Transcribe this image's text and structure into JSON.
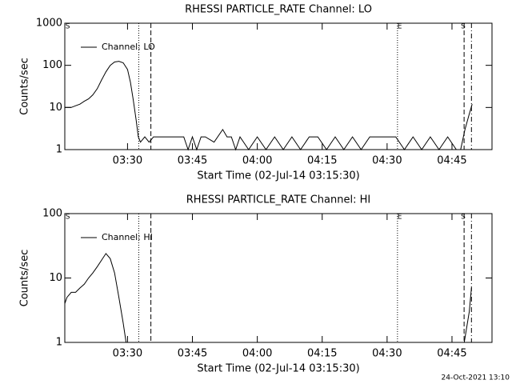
{
  "chart_data": [
    {
      "type": "line",
      "title": "RHESSI PARTICLE_RATE Channel: LO",
      "xlabel": "Start Time (02-Jul-14 03:15:30)",
      "ylabel": "Counts/sec",
      "log_y": true,
      "ylim": [
        1,
        1000
      ],
      "yticks": [
        1,
        10,
        100,
        1000
      ],
      "xlim": [
        "03:15:30",
        "04:54:15"
      ],
      "xticks": [
        "03:30",
        "03:45",
        "04:00",
        "04:15",
        "04:30",
        "04:45"
      ],
      "legend": "upper left",
      "x": [
        "03:15:30",
        "03:17",
        "03:18",
        "03:19",
        "03:20",
        "03:21",
        "03:22",
        "03:23",
        "03:24",
        "03:25",
        "03:26",
        "03:27",
        "03:28",
        "03:29",
        "03:30",
        "03:30:40",
        "03:31:20",
        "03:32",
        "03:32:30",
        "03:33",
        "03:34",
        "03:35",
        "03:36",
        "03:38",
        "03:40",
        "03:42",
        "03:43",
        "03:44",
        "03:45",
        "03:46",
        "03:47",
        "03:48",
        "03:50",
        "03:52",
        "03:53",
        "03:54",
        "03:55",
        "03:56",
        "03:58",
        "04:00",
        "04:02",
        "04:04",
        "04:06",
        "04:08",
        "04:10",
        "04:12",
        "04:14",
        "04:16",
        "04:18",
        "04:20",
        "04:22",
        "04:24",
        "04:26",
        "04:28",
        "04:30",
        "04:32",
        "04:34",
        "04:36",
        "04:38",
        "04:40",
        "04:42",
        "04:44",
        "04:46",
        "04:47",
        "04:48",
        "04:49",
        "04:49:40"
      ],
      "series": [
        {
          "name": "Channel: LO",
          "color": "#000000",
          "values": [
            10,
            10,
            11,
            12,
            14,
            16,
            20,
            28,
            45,
            70,
            100,
            120,
            125,
            115,
            80,
            40,
            15,
            5,
            2,
            1.5,
            2,
            1.5,
            2,
            2,
            2,
            2,
            2,
            1,
            2,
            1,
            2,
            2,
            1.5,
            3,
            2,
            2,
            1,
            2,
            1,
            2,
            1,
            2,
            1,
            2,
            1,
            2,
            2,
            1,
            2,
            1,
            2,
            1,
            2,
            2,
            2,
            2,
            1,
            2,
            1,
            2,
            1,
            2,
            1,
            1,
            3,
            7,
            12
          ]
        }
      ],
      "markers": [
        {
          "x": "03:32:36",
          "style": "dotted"
        },
        {
          "x": "03:35:24",
          "style": "dashed"
        },
        {
          "x": "04:32:24",
          "style": "dotted"
        },
        {
          "x": "04:47:48",
          "style": "dashed"
        },
        {
          "x": "04:49:30",
          "style": "dashdot"
        }
      ],
      "annotations": [
        {
          "x": "03:16:10",
          "text": "S"
        },
        {
          "x": "04:32:55",
          "text": "E"
        },
        {
          "x": "04:47:35",
          "text": "S"
        }
      ]
    },
    {
      "type": "line",
      "title": "RHESSI PARTICLE_RATE Channel: HI",
      "xlabel": "Start Time (02-Jul-14 03:15:30)",
      "ylabel": "Counts/sec",
      "log_y": true,
      "ylim": [
        1,
        100
      ],
      "yticks": [
        1,
        10,
        100
      ],
      "xlim": [
        "03:15:30",
        "04:54:15"
      ],
      "xticks": [
        "03:30",
        "03:45",
        "04:00",
        "04:15",
        "04:30",
        "04:45"
      ],
      "legend": "upper left",
      "x": [
        "03:15:30",
        "03:16",
        "03:17",
        "03:18",
        "03:19",
        "03:20",
        "03:21",
        "03:22",
        "03:23",
        "03:24",
        "03:25",
        "03:26",
        "03:27",
        "03:28",
        "03:29",
        "03:29:40",
        "04:47:40",
        "04:47:50",
        "04:49",
        "04:49:30"
      ],
      "series": [
        {
          "name": "Channel: HI",
          "color": "#000000",
          "values": [
            4,
            5,
            6,
            6,
            7,
            8,
            10,
            12,
            15,
            19,
            24,
            20,
            12,
            5,
            2,
            1,
            null,
            1,
            3,
            7
          ]
        }
      ],
      "markers": [
        {
          "x": "03:32:36",
          "style": "dotted"
        },
        {
          "x": "03:35:24",
          "style": "dashed"
        },
        {
          "x": "04:32:24",
          "style": "dotted"
        },
        {
          "x": "04:47:48",
          "style": "dashed"
        },
        {
          "x": "04:49:30",
          "style": "dashdot"
        }
      ],
      "annotations": [
        {
          "x": "03:16:10",
          "text": "S"
        },
        {
          "x": "04:32:55",
          "text": "E"
        },
        {
          "x": "04:47:35",
          "text": "S"
        }
      ]
    }
  ],
  "footer": "24-Oct-2021 13:10"
}
